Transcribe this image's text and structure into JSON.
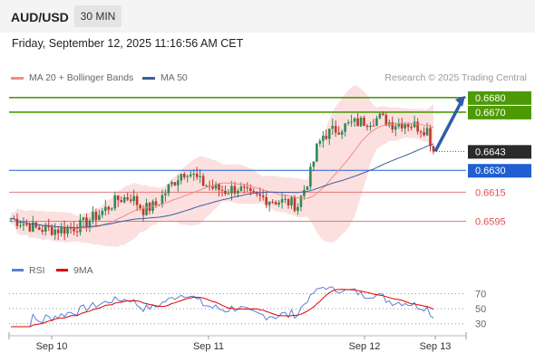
{
  "header": {
    "symbol": "AUD/USD",
    "timeframe": "30 MIN"
  },
  "timestamp": "Friday, September 12, 2025 11:16:56 AM CET",
  "legend": {
    "ma20": "MA 20 + Bollinger Bands",
    "ma50": "MA 50",
    "ma20_color": "#f28b82",
    "ma50_color": "#3a5fa0"
  },
  "credit": "Research © 2025 Trading Central",
  "chart_data": [
    {
      "type": "candlestick",
      "title": "",
      "x_ticks": [
        "Sep 10",
        "Sep 11",
        "Sep 12",
        "Sep 13"
      ],
      "ylim": [
        0.6576,
        0.6688
      ],
      "current_price": "0.6643",
      "levels": [
        {
          "label": "0.6680",
          "value": 0.668,
          "kind": "resistance-target",
          "color": "#4e9a06"
        },
        {
          "label": "0.6670",
          "value": 0.667,
          "kind": "resistance-target",
          "color": "#4e9a06"
        },
        {
          "label": "0.6630",
          "value": 0.663,
          "kind": "pivot",
          "color": "#1f5fd1"
        },
        {
          "label": "0.6615",
          "value": 0.6615,
          "kind": "support",
          "color": "#e05050"
        },
        {
          "label": "0.6595",
          "value": 0.6595,
          "kind": "support",
          "color": "#e05050"
        }
      ],
      "forecast_arrow": {
        "from": 0.6643,
        "to": 0.668,
        "color": "#2e5ca8"
      },
      "bullish_color": "#2e8b57",
      "bearish_color": "#c0392b"
    },
    {
      "type": "line",
      "series": [
        {
          "name": "RSI",
          "color": "#5b7fd4"
        },
        {
          "name": "9MA",
          "color": "#e00000"
        }
      ],
      "y_ticks": [
        "70",
        "50",
        "30"
      ],
      "ylim": [
        20,
        85
      ]
    }
  ]
}
